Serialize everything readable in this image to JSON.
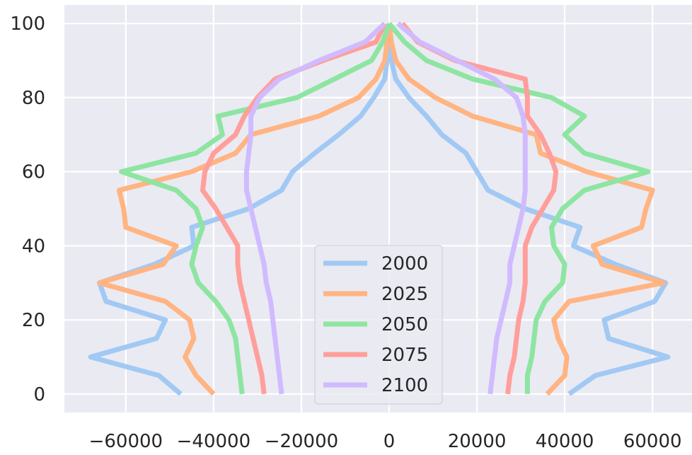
{
  "chart_data": {
    "type": "line",
    "title": "",
    "xlabel": "",
    "ylabel": "",
    "xlim": [
      -74000,
      69000
    ],
    "ylim": [
      -5,
      105
    ],
    "grid": true,
    "legend_placement": "lower-center",
    "xticks": [
      -60000,
      -40000,
      -20000,
      0,
      20000,
      40000,
      60000
    ],
    "xtick_labels": [
      "−60000",
      "−40000",
      "−20000",
      "0",
      "20000",
      "40000",
      "60000"
    ],
    "yticks": [
      0,
      20,
      40,
      60,
      80,
      100
    ],
    "ytick_labels": [
      "0",
      "20",
      "40",
      "60",
      "80",
      "100"
    ],
    "colors": {
      "background": "#eaeaf2",
      "grid": "#ffffff",
      "series": [
        "#a1c9f4",
        "#ffb482",
        "#8de5a1",
        "#ff9f9b",
        "#d0bbff"
      ]
    },
    "series": [
      {
        "name": "2000",
        "left": [
          [
            -47500,
            0
          ],
          [
            -52500,
            5
          ],
          [
            -68000,
            10
          ],
          [
            -53000,
            15
          ],
          [
            -51000,
            20
          ],
          [
            -64500,
            25
          ],
          [
            -66000,
            30
          ],
          [
            -53500,
            35
          ],
          [
            -44500,
            40
          ],
          [
            -45000,
            45
          ],
          [
            -32000,
            50
          ],
          [
            -24500,
            55
          ],
          [
            -22000,
            60
          ],
          [
            -17000,
            65
          ],
          [
            -11500,
            70
          ],
          [
            -6500,
            75
          ],
          [
            -3500,
            80
          ],
          [
            -1000,
            85
          ],
          [
            -500,
            90
          ],
          [
            0,
            95
          ],
          [
            0,
            100
          ]
        ],
        "right": [
          [
            41000,
            0
          ],
          [
            47000,
            5
          ],
          [
            63500,
            10
          ],
          [
            50000,
            15
          ],
          [
            49000,
            20
          ],
          [
            60500,
            25
          ],
          [
            63000,
            30
          ],
          [
            51500,
            35
          ],
          [
            42000,
            40
          ],
          [
            43500,
            45
          ],
          [
            31000,
            50
          ],
          [
            22500,
            55
          ],
          [
            20000,
            60
          ],
          [
            17500,
            65
          ],
          [
            12000,
            70
          ],
          [
            8500,
            75
          ],
          [
            4500,
            80
          ],
          [
            1500,
            85
          ],
          [
            500,
            90
          ],
          [
            0,
            95
          ],
          [
            0,
            100
          ]
        ]
      },
      {
        "name": "2025",
        "left": [
          [
            -40000,
            0
          ],
          [
            -44000,
            5
          ],
          [
            -46500,
            10
          ],
          [
            -44500,
            15
          ],
          [
            -45500,
            20
          ],
          [
            -51000,
            25
          ],
          [
            -66000,
            30
          ],
          [
            -51500,
            35
          ],
          [
            -48500,
            40
          ],
          [
            -60000,
            45
          ],
          [
            -60500,
            50
          ],
          [
            -61500,
            55
          ],
          [
            -45000,
            60
          ],
          [
            -35000,
            65
          ],
          [
            -31500,
            70
          ],
          [
            -16000,
            75
          ],
          [
            -7000,
            80
          ],
          [
            -3000,
            85
          ],
          [
            -1000,
            90
          ],
          [
            -500,
            95
          ],
          [
            0,
            100
          ]
        ],
        "right": [
          [
            36000,
            0
          ],
          [
            40000,
            5
          ],
          [
            40500,
            10
          ],
          [
            38500,
            15
          ],
          [
            37500,
            20
          ],
          [
            41000,
            25
          ],
          [
            62500,
            30
          ],
          [
            48500,
            35
          ],
          [
            46500,
            40
          ],
          [
            57500,
            45
          ],
          [
            58500,
            50
          ],
          [
            60000,
            55
          ],
          [
            45000,
            60
          ],
          [
            34500,
            65
          ],
          [
            33500,
            70
          ],
          [
            19000,
            75
          ],
          [
            10500,
            80
          ],
          [
            4500,
            85
          ],
          [
            1500,
            90
          ],
          [
            500,
            95
          ],
          [
            0,
            100
          ]
        ]
      },
      {
        "name": "2050",
        "left": [
          [
            -33500,
            0
          ],
          [
            -34000,
            5
          ],
          [
            -34500,
            10
          ],
          [
            -35000,
            15
          ],
          [
            -36500,
            20
          ],
          [
            -39500,
            25
          ],
          [
            -43500,
            30
          ],
          [
            -45000,
            35
          ],
          [
            -44000,
            40
          ],
          [
            -42500,
            45
          ],
          [
            -44000,
            50
          ],
          [
            -48500,
            55
          ],
          [
            -61000,
            60
          ],
          [
            -44000,
            65
          ],
          [
            -38000,
            70
          ],
          [
            -39000,
            75
          ],
          [
            -21000,
            80
          ],
          [
            -12500,
            85
          ],
          [
            -4000,
            90
          ],
          [
            -1500,
            95
          ],
          [
            0,
            100
          ]
        ],
        "right": [
          [
            31500,
            0
          ],
          [
            31500,
            5
          ],
          [
            32500,
            10
          ],
          [
            33000,
            15
          ],
          [
            33500,
            20
          ],
          [
            35500,
            25
          ],
          [
            39500,
            30
          ],
          [
            40000,
            35
          ],
          [
            37500,
            40
          ],
          [
            37000,
            45
          ],
          [
            39500,
            50
          ],
          [
            44500,
            55
          ],
          [
            59000,
            60
          ],
          [
            44500,
            65
          ],
          [
            40000,
            70
          ],
          [
            44500,
            75
          ],
          [
            37000,
            80
          ],
          [
            19000,
            85
          ],
          [
            8500,
            90
          ],
          [
            3500,
            95
          ],
          [
            0,
            100
          ]
        ]
      },
      {
        "name": "2075",
        "left": [
          [
            -28500,
            0
          ],
          [
            -29000,
            5
          ],
          [
            -30000,
            10
          ],
          [
            -31000,
            15
          ],
          [
            -32000,
            20
          ],
          [
            -33000,
            25
          ],
          [
            -34000,
            30
          ],
          [
            -34500,
            35
          ],
          [
            -34500,
            40
          ],
          [
            -37000,
            45
          ],
          [
            -39500,
            50
          ],
          [
            -42500,
            55
          ],
          [
            -42000,
            60
          ],
          [
            -40000,
            65
          ],
          [
            -35000,
            70
          ],
          [
            -33000,
            75
          ],
          [
            -30000,
            80
          ],
          [
            -26000,
            85
          ],
          [
            -15000,
            90
          ],
          [
            -3000,
            95
          ],
          [
            -1000,
            100
          ]
        ],
        "right": [
          [
            27000,
            0
          ],
          [
            27500,
            5
          ],
          [
            28500,
            10
          ],
          [
            29000,
            15
          ],
          [
            29500,
            20
          ],
          [
            30500,
            25
          ],
          [
            31000,
            30
          ],
          [
            31000,
            35
          ],
          [
            31000,
            40
          ],
          [
            32500,
            45
          ],
          [
            35000,
            50
          ],
          [
            37500,
            55
          ],
          [
            38000,
            60
          ],
          [
            36500,
            65
          ],
          [
            34500,
            70
          ],
          [
            31500,
            75
          ],
          [
            31500,
            80
          ],
          [
            31000,
            85
          ],
          [
            15000,
            90
          ],
          [
            6500,
            95
          ],
          [
            3000,
            100
          ]
        ]
      },
      {
        "name": "2100",
        "left": [
          [
            -24500,
            0
          ],
          [
            -25000,
            5
          ],
          [
            -25500,
            10
          ],
          [
            -26000,
            15
          ],
          [
            -26500,
            20
          ],
          [
            -27000,
            25
          ],
          [
            -28000,
            30
          ],
          [
            -28500,
            35
          ],
          [
            -29500,
            40
          ],
          [
            -30500,
            45
          ],
          [
            -31500,
            50
          ],
          [
            -32500,
            55
          ],
          [
            -32500,
            60
          ],
          [
            -32000,
            65
          ],
          [
            -31500,
            70
          ],
          [
            -31500,
            75
          ],
          [
            -29500,
            80
          ],
          [
            -25000,
            85
          ],
          [
            -16000,
            90
          ],
          [
            -5500,
            95
          ],
          [
            -1000,
            100
          ]
        ],
        "right": [
          [
            23000,
            0
          ],
          [
            23500,
            5
          ],
          [
            24000,
            10
          ],
          [
            24500,
            15
          ],
          [
            25500,
            20
          ],
          [
            26500,
            25
          ],
          [
            27500,
            30
          ],
          [
            27500,
            35
          ],
          [
            28500,
            40
          ],
          [
            29500,
            45
          ],
          [
            30500,
            50
          ],
          [
            31000,
            55
          ],
          [
            31000,
            60
          ],
          [
            31000,
            65
          ],
          [
            31000,
            70
          ],
          [
            30500,
            75
          ],
          [
            29000,
            80
          ],
          [
            24000,
            85
          ],
          [
            15500,
            90
          ],
          [
            7000,
            95
          ],
          [
            2000,
            100
          ]
        ]
      }
    ]
  }
}
